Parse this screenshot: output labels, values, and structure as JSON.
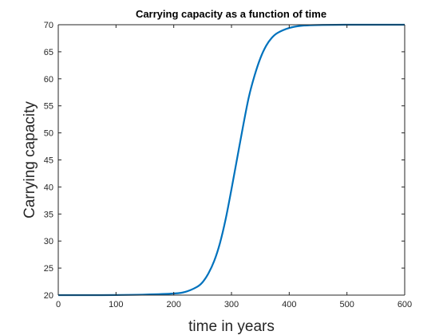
{
  "chart_data": {
    "type": "line",
    "title": "Carrying capacity as a function of time",
    "xlabel": "time in years",
    "ylabel": "Carrying capacity",
    "xlim": [
      0,
      600
    ],
    "ylim": [
      20,
      70
    ],
    "xticks": [
      "0",
      "100",
      "200",
      "300",
      "400",
      "500",
      "600"
    ],
    "yticks": [
      "20",
      "25",
      "30",
      "35",
      "40",
      "45",
      "50",
      "55",
      "60",
      "65",
      "70"
    ],
    "grid": false,
    "line_color": "#0072bd",
    "series": [
      {
        "x": [
          0,
          50,
          100,
          150,
          200,
          220,
          240,
          250,
          260,
          270,
          280,
          290,
          300,
          310,
          320,
          330,
          340,
          350,
          360,
          370,
          380,
          400,
          420,
          450,
          500,
          550,
          600
        ],
        "values": [
          20,
          20,
          20.02,
          20.1,
          20.3,
          20.6,
          21.5,
          22.4,
          24.0,
          26.3,
          29.6,
          34.1,
          39.6,
          45.4,
          51.2,
          56.6,
          60.6,
          63.8,
          66.1,
          67.6,
          68.5,
          69.4,
          69.8,
          69.95,
          70,
          70,
          70
        ]
      }
    ]
  }
}
